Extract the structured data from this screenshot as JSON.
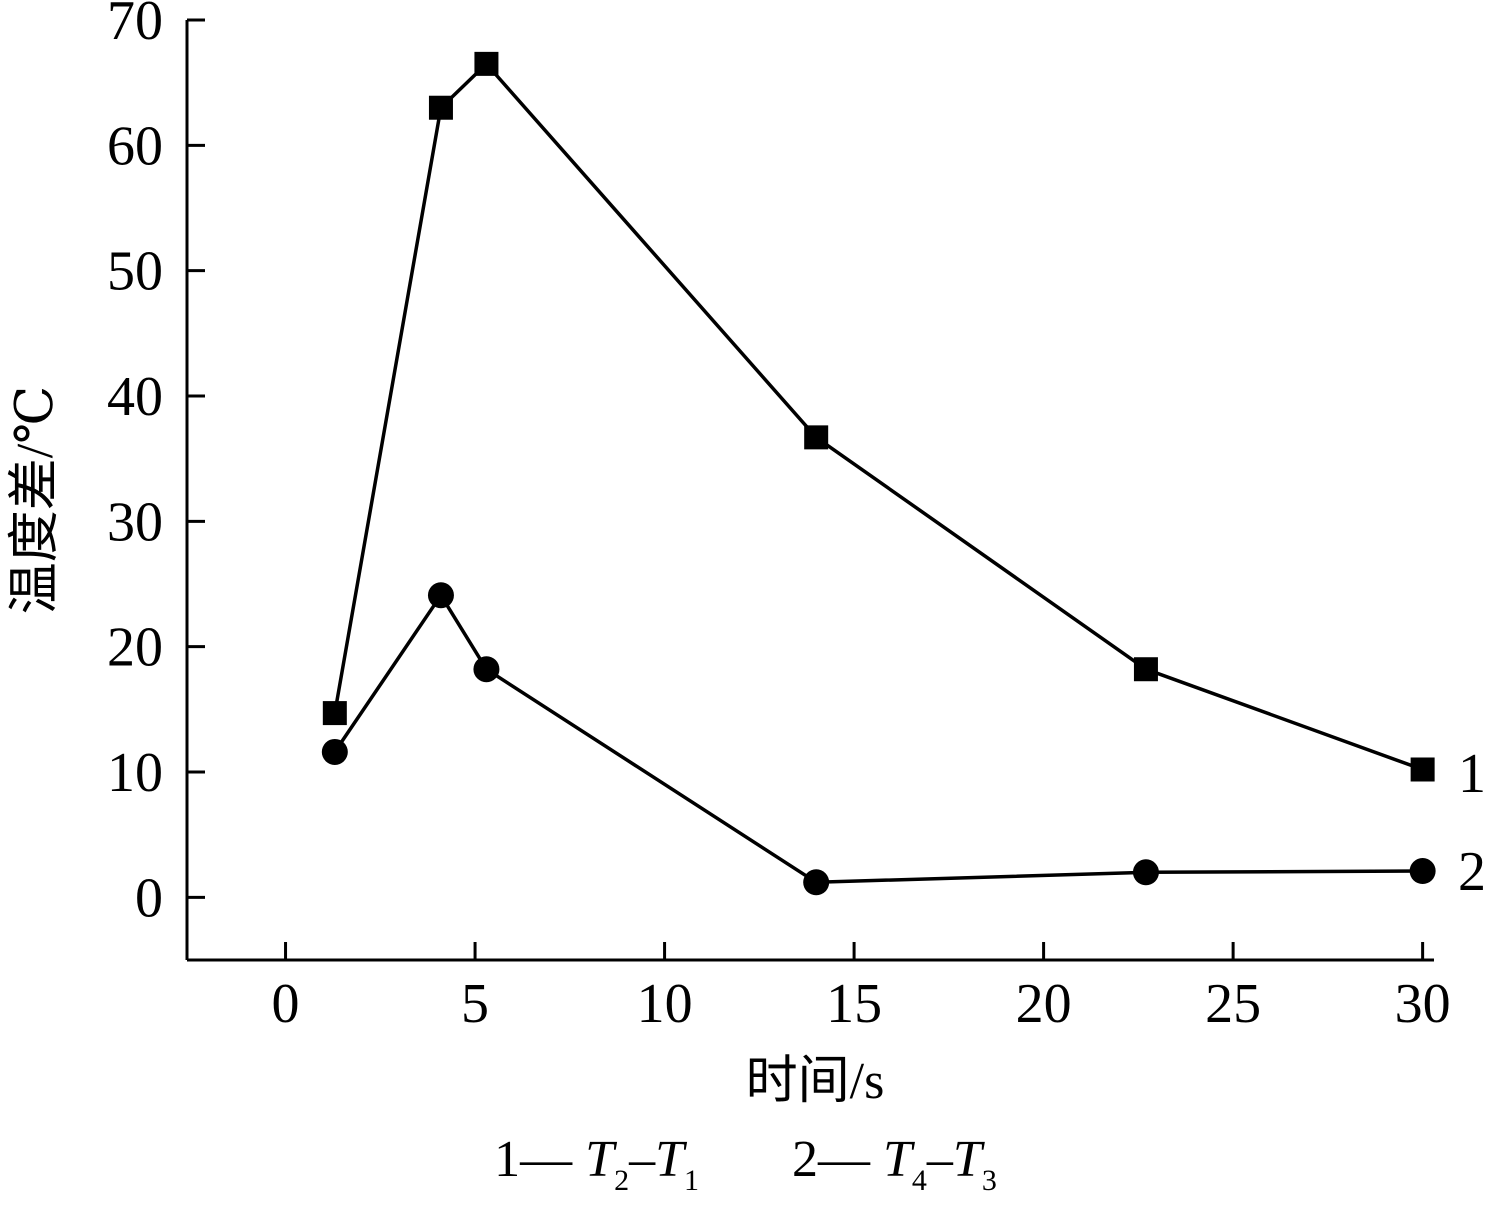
{
  "chart_data": {
    "type": "line",
    "xlabel": "时间/s",
    "ylabel": "温度差/℃",
    "xlim": [
      -2.6,
      30.3
    ],
    "ylim": [
      -5,
      70
    ],
    "x_ticks": [
      0,
      5,
      10,
      15,
      20,
      25,
      30
    ],
    "y_ticks": [
      0,
      10,
      20,
      30,
      40,
      50,
      60,
      70
    ],
    "grid": false,
    "series": [
      {
        "name": "1",
        "marker": "square",
        "color": "#000000",
        "x": [
          1.3,
          4.1,
          5.3,
          14.0,
          22.7,
          30.0
        ],
        "y": [
          14.7,
          63.0,
          66.5,
          36.7,
          18.2,
          10.2
        ]
      },
      {
        "name": "2",
        "marker": "circle",
        "color": "#000000",
        "x": [
          1.3,
          4.1,
          5.3,
          14.0,
          22.7,
          30.0
        ],
        "y": [
          11.6,
          24.1,
          18.2,
          1.2,
          2.0,
          2.1
        ]
      }
    ],
    "legend": [
      {
        "number": "1—",
        "base1": "T",
        "sub1": "2",
        "minus": "–",
        "base2": "T",
        "sub2": "1"
      },
      {
        "number": "2—",
        "base1": "T",
        "sub1": "4",
        "minus": "–",
        "base2": "T",
        "sub2": "3"
      }
    ],
    "legend_position": "bottom"
  }
}
